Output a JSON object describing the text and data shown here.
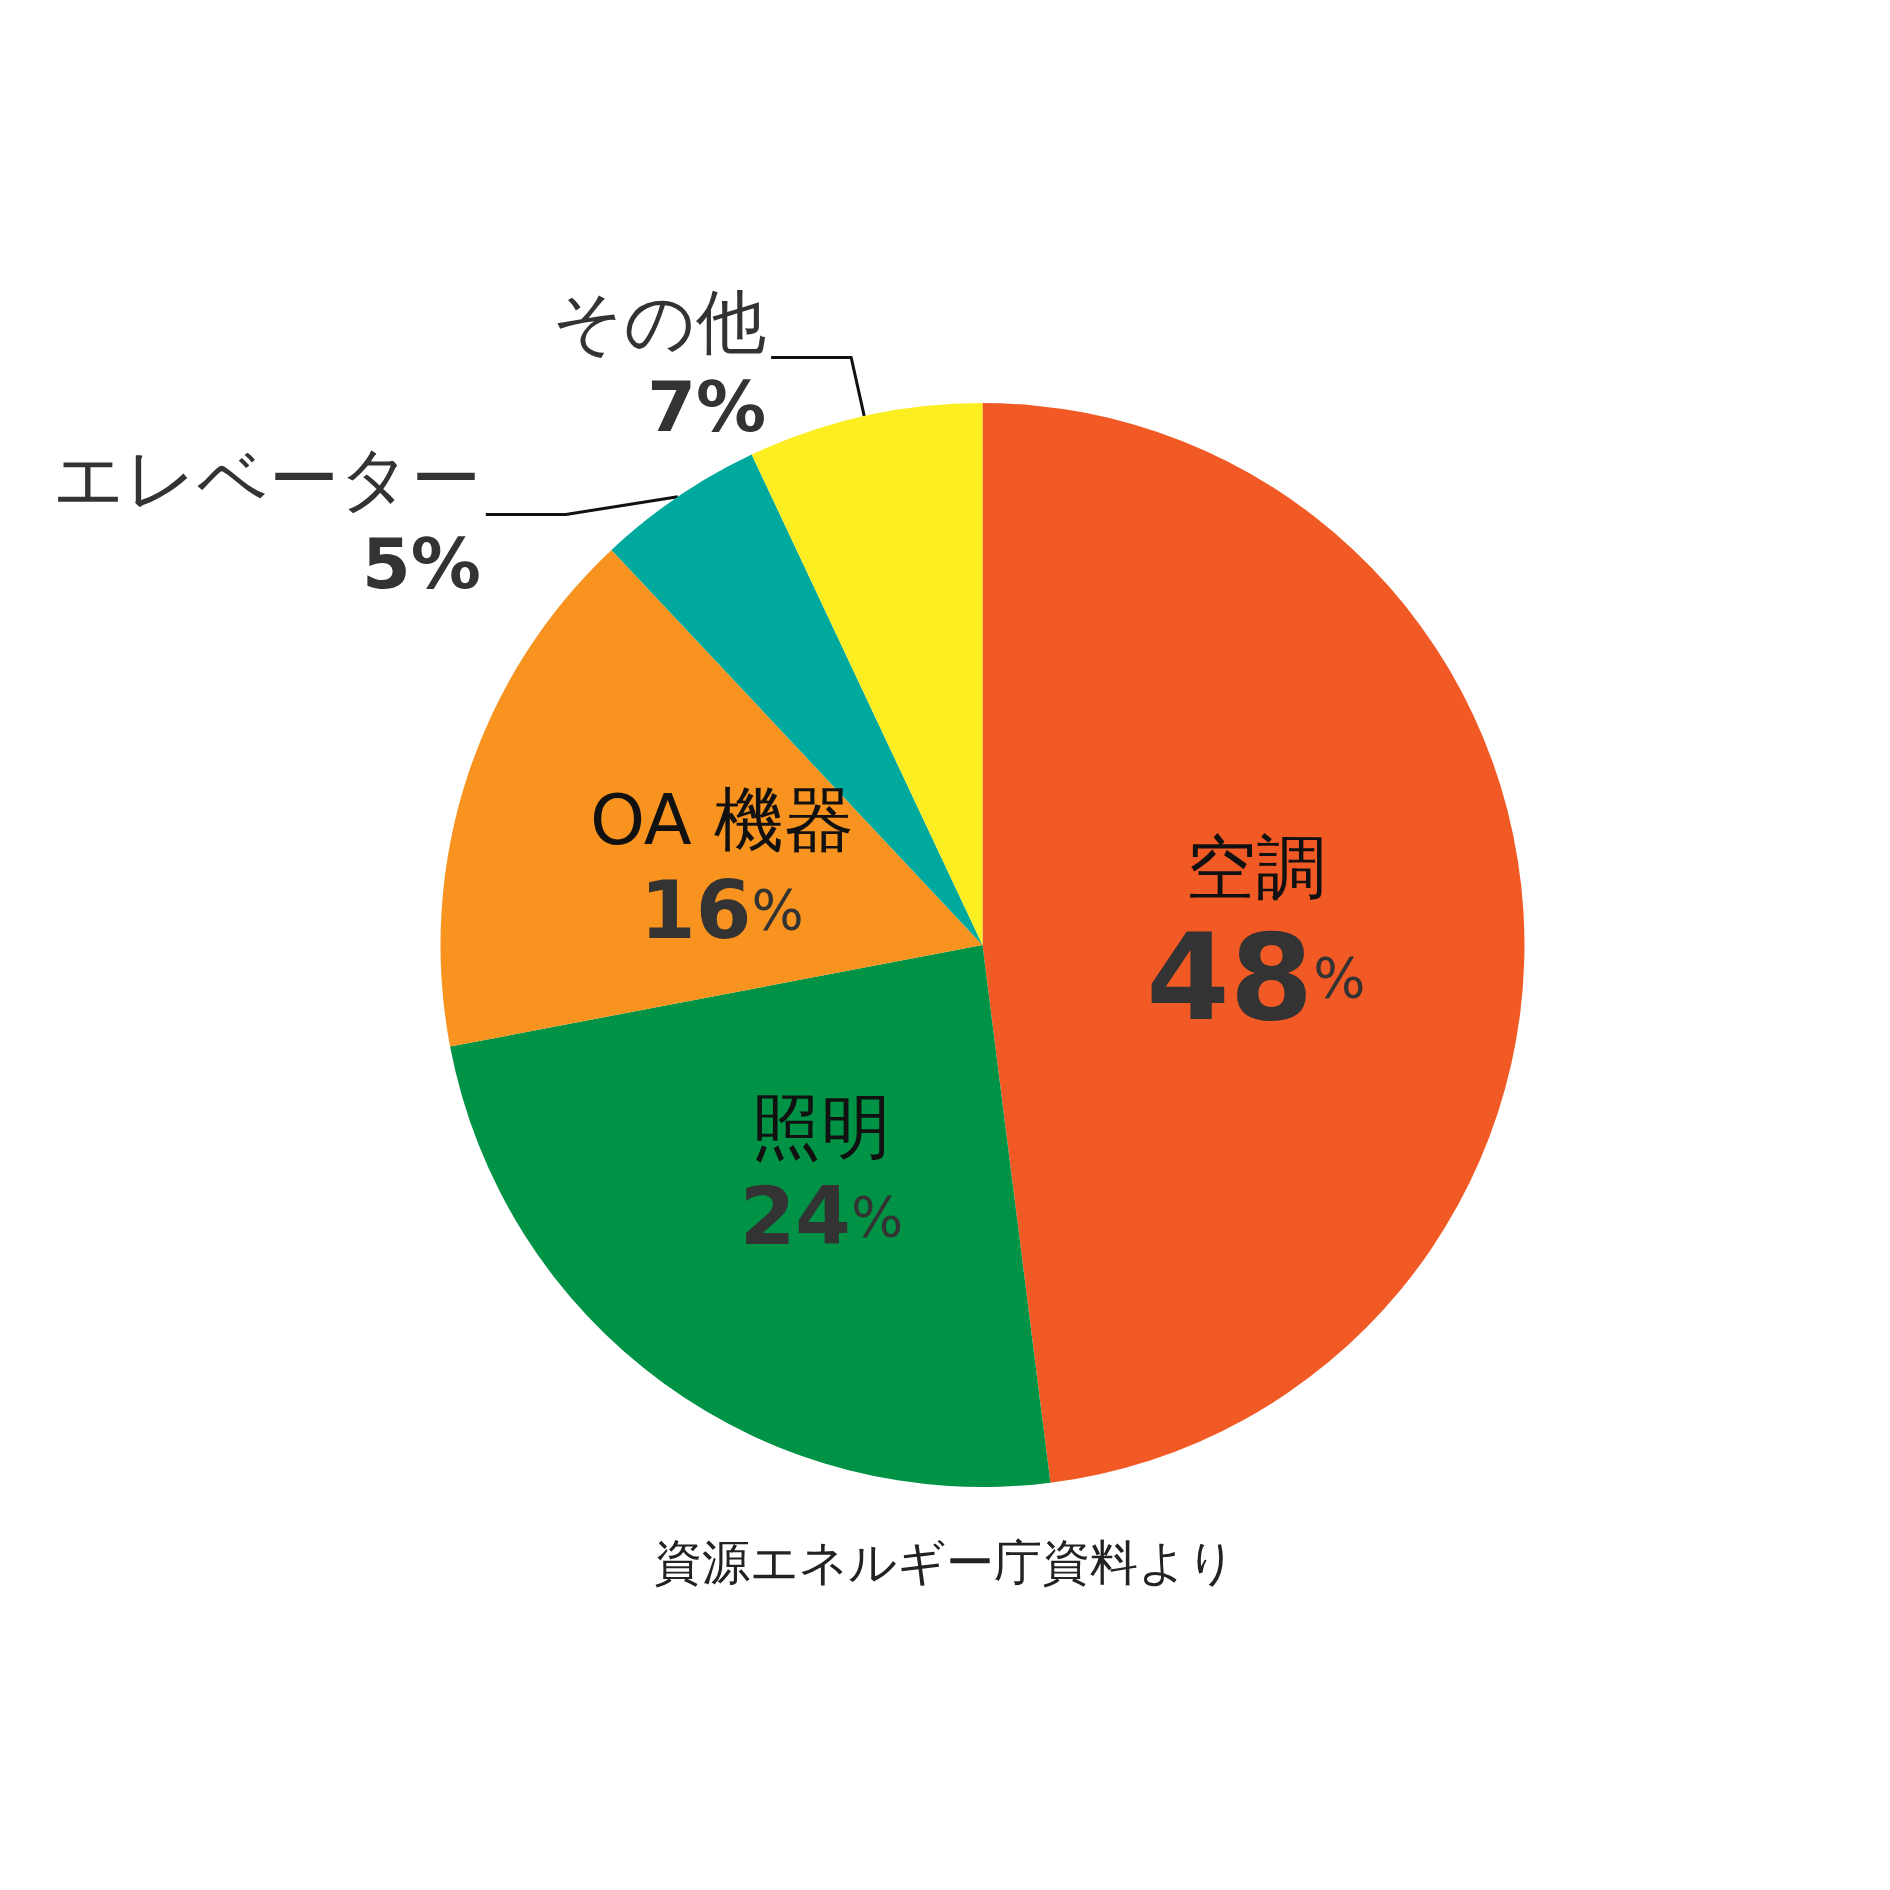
{
  "chart_data": {
    "type": "pie",
    "categories": [
      "空調",
      "照明",
      "OA 機器",
      "エレベーター",
      "その他"
    ],
    "values": [
      48,
      24,
      16,
      5,
      7
    ],
    "colors": [
      "#f15a24",
      "#009245",
      "#f7931e",
      "#00a99d",
      "#fcee21"
    ],
    "value_labels": [
      "48%",
      "24%",
      "16%",
      "5%",
      "7%"
    ],
    "legend": false,
    "annotations": [
      "資源エネルギー庁資料より"
    ]
  }
}
